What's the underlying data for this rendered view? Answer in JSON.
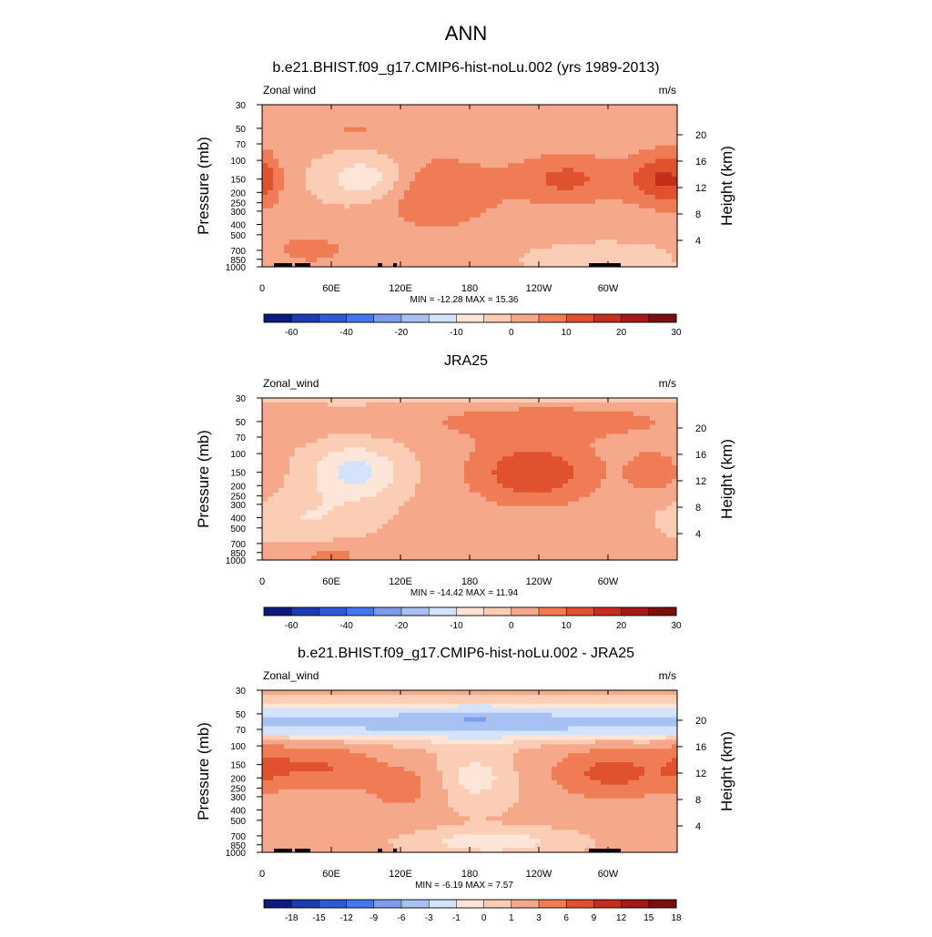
{
  "page_title": "ANN",
  "colors": {
    "scale": [
      "#0a1a80",
      "#1c3cb0",
      "#2d5ad6",
      "#4477ee",
      "#7a9eed",
      "#a7c1f3",
      "#d2e3fb",
      "#fde6d7",
      "#fbcdb5",
      "#f6a98a",
      "#ef7c55",
      "#e0522e",
      "#c42f1d",
      "#a31a17",
      "#7d0e10"
    ],
    "topo": "#000000",
    "frame": "#000000"
  },
  "chart_data": [
    {
      "type": "heatmap",
      "title": "b.e21.BHIST.f09_g17.CMIP6-hist-noLu.002 (yrs 1989-2013)",
      "variable_label": "Zonal wind",
      "units_label": "m/s",
      "ylabel": "Pressure (mb)",
      "y2label": "Height (km)",
      "x_ticks": [
        "0",
        "60E",
        "120E",
        "180",
        "120W",
        "60W"
      ],
      "x_tick_lon": [
        0,
        60,
        120,
        180,
        240,
        300
      ],
      "xlim": [
        0,
        360
      ],
      "y_scale": "log",
      "ylim": [
        1000,
        30
      ],
      "y_ticks": [
        "30",
        "50",
        "70",
        "100",
        "150",
        "200",
        "250",
        "300",
        "400",
        "500",
        "700",
        "850",
        "1000"
      ],
      "y2_ticks": [
        "4",
        "8",
        "12",
        "16",
        "20"
      ],
      "stats": "MIN = -12.28  MAX =  15.36",
      "colorbar_labels": [
        "-60",
        "-40",
        "-20",
        "-10",
        "0",
        "10",
        "20",
        "30"
      ],
      "colorbar_levels": [
        -70,
        -60,
        -50,
        -40,
        -30,
        -20,
        -15,
        -10,
        -5,
        0,
        5,
        10,
        15,
        20,
        25,
        30
      ],
      "contour_levels": [
        -15,
        -10,
        -5,
        0,
        5,
        10,
        15
      ],
      "grid": false,
      "features": [
        {
          "lon": 265,
          "p": 150,
          "amp": 10,
          "dlon": 48,
          "dp": 0.55
        },
        {
          "lon": 150,
          "p": 200,
          "amp": 9,
          "dlon": 55,
          "dp": 0.8
        },
        {
          "lon": 0,
          "p": 150,
          "amp": 6,
          "dlon": 18,
          "dp": 0.6
        },
        {
          "lon": 342,
          "p": 150,
          "amp": 11,
          "dlon": 28,
          "dp": 0.6
        },
        {
          "lon": 80,
          "p": 50,
          "amp": 4,
          "dlon": 40,
          "dp": 0.3
        },
        {
          "lon": 90,
          "p": 150,
          "amp": -11,
          "dlon": 38,
          "dp": 0.5
        },
        {
          "lon": 40,
          "p": 700,
          "amp": 6,
          "dlon": 38,
          "dp": 0.35
        },
        {
          "lon": 300,
          "p": 850,
          "amp": -6,
          "dlon": 60,
          "dp": 0.3
        }
      ]
    },
    {
      "type": "heatmap",
      "title": "JRA25",
      "variable_label": "Zonal_wind",
      "units_label": "m/s",
      "ylabel": "Pressure (mb)",
      "y2label": "Height (km)",
      "x_ticks": [
        "0",
        "60E",
        "120E",
        "180",
        "120W",
        "60W"
      ],
      "x_tick_lon": [
        0,
        60,
        120,
        180,
        240,
        300
      ],
      "xlim": [
        0,
        360
      ],
      "y_scale": "log",
      "ylim": [
        1000,
        30
      ],
      "y_ticks": [
        "30",
        "50",
        "70",
        "100",
        "150",
        "200",
        "250",
        "300",
        "400",
        "500",
        "700",
        "850",
        "1000"
      ],
      "y2_ticks": [
        "4",
        "8",
        "12",
        "16",
        "20"
      ],
      "stats": "MIN = -14.42  MAX =  11.94",
      "colorbar_labels": [
        "-60",
        "-40",
        "-20",
        "-10",
        "0",
        "10",
        "20",
        "30"
      ],
      "colorbar_levels": [
        -70,
        -60,
        -50,
        -40,
        -30,
        -20,
        -15,
        -10,
        -5,
        0,
        5,
        10,
        15,
        20,
        25,
        30
      ],
      "contour_levels": [
        -15,
        -10,
        -5,
        0,
        5,
        10,
        15
      ],
      "grid": false,
      "features": [
        {
          "lon": 235,
          "p": 150,
          "amp": 13,
          "dlon": 55,
          "dp": 0.7
        },
        {
          "lon": 340,
          "p": 150,
          "amp": 7,
          "dlon": 25,
          "dp": 0.5
        },
        {
          "lon": 80,
          "p": 150,
          "amp": -13,
          "dlon": 40,
          "dp": 0.6
        },
        {
          "lon": 40,
          "p": 400,
          "amp": -6,
          "dlon": 50,
          "dp": 0.5
        },
        {
          "lon": 250,
          "p": 50,
          "amp": 6,
          "dlon": 130,
          "dp": 0.4
        },
        {
          "lon": 180,
          "p": 30,
          "amp": -8,
          "dlon": 400,
          "dp": 0.12
        },
        {
          "lon": 60,
          "p": 900,
          "amp": 5,
          "dlon": 40,
          "dp": 0.25
        }
      ]
    },
    {
      "type": "heatmap",
      "title": "b.e21.BHIST.f09_g17.CMIP6-hist-noLu.002 - JRA25",
      "variable_label": "Zonal_wind",
      "units_label": "m/s",
      "ylabel": "Pressure (mb)",
      "y2label": "Height (km)",
      "x_ticks": [
        "0",
        "60E",
        "120E",
        "180",
        "120W",
        "60W"
      ],
      "x_tick_lon": [
        0,
        60,
        120,
        180,
        240,
        300
      ],
      "xlim": [
        0,
        360
      ],
      "y_scale": "log",
      "ylim": [
        1000,
        30
      ],
      "y_ticks": [
        "30",
        "50",
        "70",
        "100",
        "150",
        "200",
        "250",
        "300",
        "400",
        "500",
        "700",
        "850",
        "1000"
      ],
      "y2_ticks": [
        "4",
        "8",
        "12",
        "16",
        "20"
      ],
      "stats": "MIN =  -6.19  MAX =   7.57",
      "colorbar_labels": [
        "-18",
        "-15",
        "-12",
        "-9",
        "-6",
        "-3",
        "-1",
        "0",
        "1",
        "3",
        "6",
        "9",
        "12",
        "15",
        "18"
      ],
      "colorbar_levels": [
        -21,
        -18,
        -15,
        -12,
        -9,
        -6,
        -3,
        -1,
        0,
        1,
        3,
        6,
        9,
        12,
        15,
        18
      ],
      "contour_levels": [
        -6,
        -3,
        -1,
        0,
        1,
        3,
        6
      ],
      "grid": false,
      "features": [
        {
          "lon": 180,
          "p": 60,
          "amp": -5,
          "dlon": 900,
          "dp": 0.35
        },
        {
          "lon": 185,
          "p": 55,
          "amp": -2.5,
          "dlon": 40,
          "dp": 0.2
        },
        {
          "lon": 50,
          "p": 160,
          "amp": 5,
          "dlon": 45,
          "dp": 0.45
        },
        {
          "lon": 305,
          "p": 180,
          "amp": 6,
          "dlon": 50,
          "dp": 0.5
        },
        {
          "lon": 120,
          "p": 250,
          "amp": 3,
          "dlon": 30,
          "dp": 0.5
        },
        {
          "lon": 185,
          "p": 200,
          "amp": -1.6,
          "dlon": 35,
          "dp": 0.6
        },
        {
          "lon": 5,
          "p": 150,
          "amp": 3,
          "dlon": 20,
          "dp": 0.5
        },
        {
          "lon": 200,
          "p": 800,
          "amp": -2,
          "dlon": 60,
          "dp": 0.25
        }
      ]
    }
  ]
}
